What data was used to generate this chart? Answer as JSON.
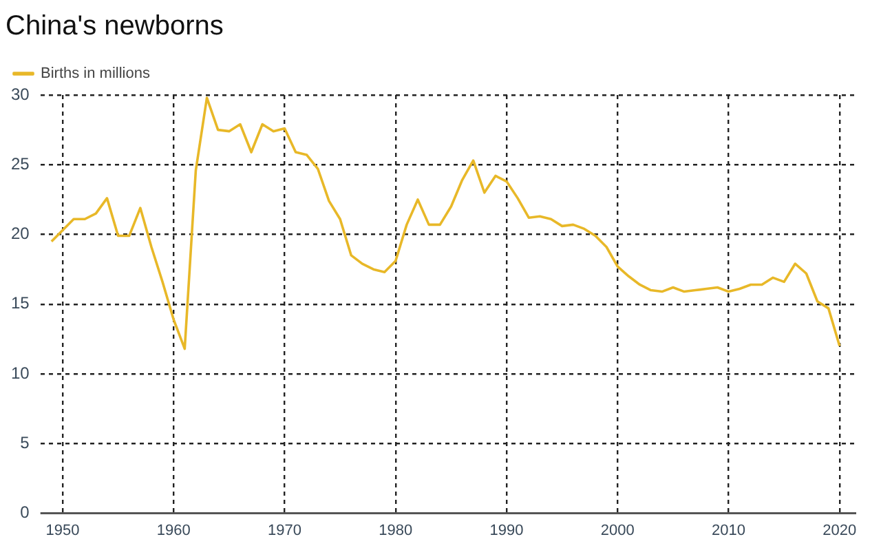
{
  "chart_data": {
    "type": "line",
    "title": "China's newborns",
    "x": [
      1949,
      1950,
      1951,
      1952,
      1953,
      1954,
      1955,
      1956,
      1957,
      1958,
      1959,
      1960,
      1961,
      1962,
      1963,
      1964,
      1965,
      1966,
      1967,
      1968,
      1969,
      1970,
      1971,
      1972,
      1973,
      1974,
      1975,
      1976,
      1977,
      1978,
      1979,
      1980,
      1981,
      1982,
      1983,
      1984,
      1985,
      1986,
      1987,
      1988,
      1989,
      1990,
      1991,
      1992,
      1993,
      1994,
      1995,
      1996,
      1997,
      1998,
      1999,
      2000,
      2001,
      2002,
      2003,
      2004,
      2005,
      2006,
      2007,
      2008,
      2009,
      2010,
      2011,
      2012,
      2013,
      2014,
      2015,
      2016,
      2017,
      2018,
      2019,
      2020
    ],
    "series": [
      {
        "name": "Births in millions",
        "color": "#e8b828",
        "values": [
          19.5,
          20.3,
          21.1,
          21.1,
          21.5,
          22.6,
          19.9,
          19.9,
          21.9,
          19.1,
          16.6,
          13.9,
          11.8,
          24.6,
          29.8,
          27.5,
          27.4,
          27.9,
          25.9,
          27.9,
          27.4,
          27.6,
          25.9,
          25.7,
          24.7,
          22.4,
          21.1,
          18.5,
          17.9,
          17.5,
          17.3,
          18.1,
          20.7,
          22.5,
          20.7,
          20.7,
          22.0,
          23.9,
          25.3,
          23.0,
          24.2,
          23.8,
          22.6,
          21.2,
          21.3,
          21.1,
          20.6,
          20.7,
          20.4,
          19.9,
          19.1,
          17.7,
          17.0,
          16.4,
          16.0,
          15.9,
          16.2,
          15.9,
          16.0,
          16.1,
          16.2,
          15.9,
          16.1,
          16.4,
          16.4,
          16.9,
          16.6,
          17.9,
          17.2,
          15.2,
          14.7,
          12.0
        ]
      }
    ],
    "xlim": [
      1948,
      2021.5
    ],
    "xticks": [
      1950,
      1960,
      1970,
      1980,
      1990,
      2000,
      2010,
      2020
    ],
    "ylim": [
      0,
      30
    ],
    "yticks": [
      0,
      5,
      10,
      15,
      20,
      25,
      30
    ],
    "grid": true,
    "legend": "top left",
    "marker": "none",
    "line_style": "solid"
  }
}
